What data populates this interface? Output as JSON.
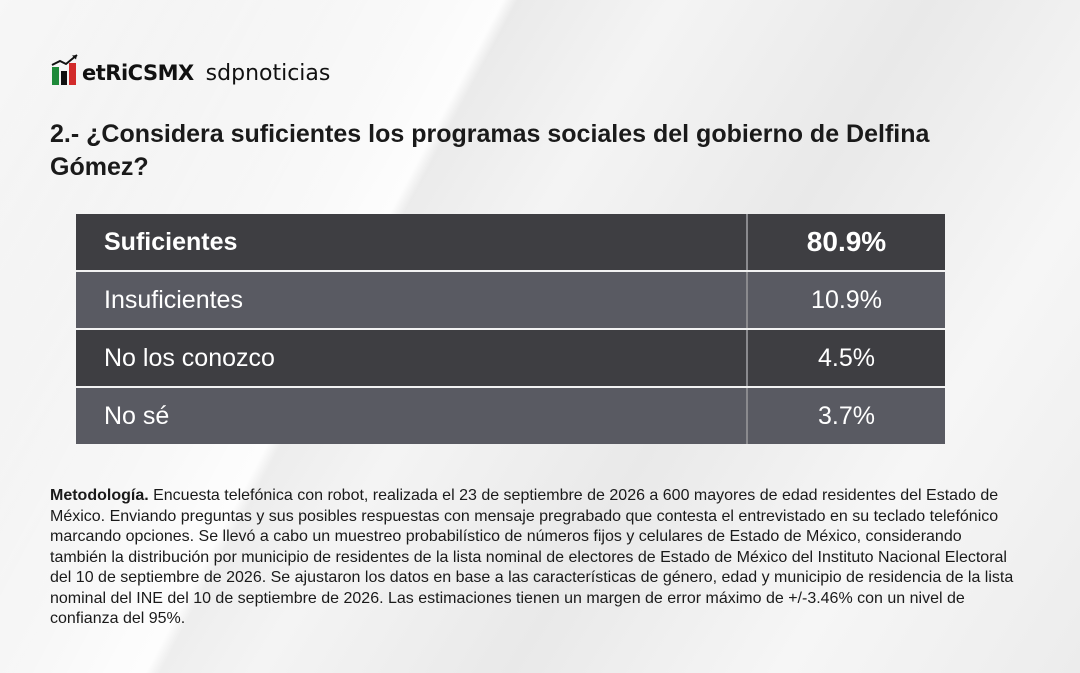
{
  "brand": {
    "logo_text": "etRiCSMX",
    "logo_name": "metrics-mx-logo",
    "partner": "sdpnoticias",
    "colors": {
      "green": "#1f8a3a",
      "red": "#d22b2b",
      "dark": "#111111"
    }
  },
  "title": "2.- ¿Considera suficientes los programas sociales del gobierno de Delfina Gómez?",
  "chart_data": {
    "type": "table",
    "rows": [
      {
        "label": "Suficientes",
        "value": "80.9%"
      },
      {
        "label": "Insuficientes",
        "value": "10.9%"
      },
      {
        "label": "No los conozco",
        "value": "4.5%"
      },
      {
        "label": "No sé",
        "value": "3.7%"
      }
    ],
    "values": [
      80.9,
      10.9,
      4.5,
      3.7
    ],
    "colors": {
      "row_dark": "#3e3e42",
      "row_light": "#595a62",
      "text": "#ffffff"
    }
  },
  "methodology": {
    "label": "Metodología.",
    "text": " Encuesta telefónica con robot, realizada el 23 de septiembre de 2026 a 600 mayores de edad residentes del Estado de México. Enviando preguntas y sus posibles respuestas con mensaje pregrabado que contesta el entrevistado en su teclado telefónico marcando opciones. Se llevó a cabo un muestreo probabilístico de números fijos y celulares de Estado de México, considerando también la distribución por municipio de residentes de la lista nominal de electores de Estado de México del Instituto Nacional Electoral del 10 de septiembre de 2026. Se ajustaron los datos en base a las características de género, edad y municipio de residencia de la lista nominal del INE del 10 de septiembre de 2026. Las estimaciones tienen un margen de error máximo de +/-3.46% con un nivel de confianza del 95%."
  }
}
